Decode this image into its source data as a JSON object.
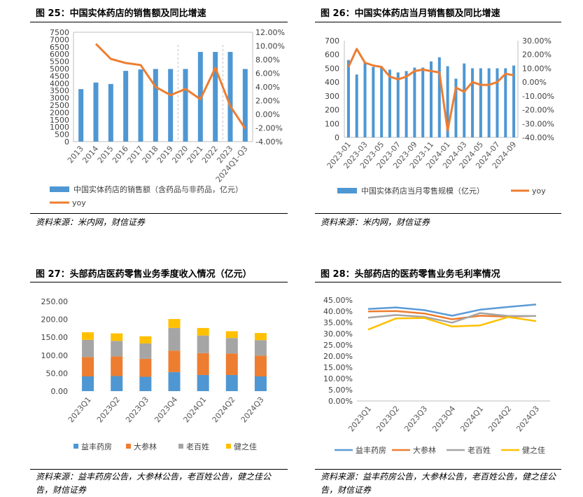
{
  "panels": [
    {
      "title": "图 25：中国实体药店的销售额及同比增速",
      "source": "资料来源：米内网，财信证券",
      "chart": {
        "type": "bar",
        "categories": [
          "2013",
          "2014",
          "2015",
          "2016",
          "2017",
          "2018",
          "2019",
          "2020",
          "2021",
          "2022",
          "2023",
          "2024Q1-Q3"
        ],
        "ylim": [
          0,
          7500
        ],
        "yticks": [
          "0",
          "500",
          "1000",
          "1500",
          "2000",
          "2500",
          "3000",
          "3500",
          "4000",
          "4500",
          "5000",
          "5500",
          "6000",
          "6500",
          "7000",
          "7500"
        ],
        "y2lim": [
          -4,
          12
        ],
        "y2ticks": [
          "-4.00%",
          "-2.00%",
          "0.00%",
          "2.00%",
          "4.00%",
          "6.00%",
          "8.00%",
          "10.00%",
          "12.00%"
        ],
        "series": [
          {
            "name": "中国实体药店的销售额（含药品与非药品，亿元）",
            "type": "bar",
            "color": "#4e97d3",
            "values": [
              3600,
              4050,
              3950,
              4850,
              4950,
              4980,
              4980,
              4980,
              6150,
              6150,
              6150,
              4980
            ]
          },
          {
            "name": "yoy",
            "type": "line",
            "axis": "right",
            "color": "#ed7d31",
            "values": [
              null,
              10.3,
              8.1,
              7.5,
              7.2,
              4.0,
              2.8,
              3.7,
              2.2,
              6.8,
              1.2,
              -2.1
            ]
          }
        ]
      }
    },
    {
      "title": "图 26：中国实体药店当月销售额及同比增速",
      "source": "资料来源：米内网，财信证券",
      "chart": {
        "type": "bar",
        "categories": [
          "2023-01",
          "2023-02",
          "2023-03",
          "2023-04",
          "2023-05",
          "2023-06",
          "2023-07",
          "2023-08",
          "2023-09",
          "2023-10",
          "2023-11",
          "2023-12",
          "2024-01",
          "2024-02",
          "2024-03",
          "2024-04",
          "2024-05",
          "2024-06",
          "2024-07",
          "2024-08",
          "2024-09"
        ],
        "xticks_shown": [
          "2023-01",
          "2023-03",
          "2023-05",
          "2023-07",
          "2023-09",
          "2023-11",
          "2024-01",
          "2024-03",
          "2024-05",
          "2024-07",
          "2024-09"
        ],
        "ylim": [
          0,
          700
        ],
        "yticks": [
          "0",
          "100",
          "200",
          "300",
          "400",
          "500",
          "600",
          "700"
        ],
        "y2lim": [
          -40,
          30
        ],
        "y2ticks": [
          "-40.00%",
          "-30.00%",
          "-20.00%",
          "-10.00%",
          "0.00%",
          "10.00%",
          "20.00%",
          "30.00%"
        ],
        "series": [
          {
            "name": "中国实体药店当月零售规模（亿元）",
            "type": "bar",
            "color": "#4e97d3",
            "values": [
              560,
              455,
              540,
              510,
              515,
              490,
              470,
              480,
              505,
              505,
              550,
              580,
              515,
              425,
              535,
              500,
              500,
              500,
              500,
              500,
              520
            ]
          },
          {
            "name": "yoy",
            "type": "line",
            "axis": "right",
            "color": "#ed7d31",
            "values": [
              11,
              24,
              14,
              12,
              11,
              4,
              2,
              4,
              8,
              9,
              8,
              7,
              -35,
              -4,
              -7,
              0,
              -2,
              -2,
              0,
              6,
              5
            ]
          }
        ]
      }
    },
    {
      "title": "图 27：头部药店医药零售业务季度收入情况（亿元）",
      "source": "资料来源：益丰药房公告，大参林公告，老百姓公告，健之佳公告，财信证券",
      "chart": {
        "type": "bar",
        "stacked": true,
        "categories": [
          "2023Q1",
          "2023Q2",
          "2023Q3",
          "2023Q4",
          "2024Q1",
          "2024Q2",
          "2024Q3"
        ],
        "ylim": [
          0,
          250
        ],
        "yticks": [
          "0.00",
          "50.00",
          "100.00",
          "150.00",
          "200.00",
          "250.00"
        ],
        "series": [
          {
            "name": "益丰药房",
            "color": "#4e97d3",
            "values": [
              41,
              42,
              40,
              53,
              45,
              45,
              41
            ]
          },
          {
            "name": "大参林",
            "color": "#ed7d31",
            "values": [
              54,
              55,
              50,
              60,
              61,
              60,
              58
            ]
          },
          {
            "name": "老百姓",
            "color": "#a5a5a5",
            "values": [
              48,
              43,
              43,
              63,
              49,
              43,
              43
            ]
          },
          {
            "name": "健之佳",
            "color": "#ffc000",
            "values": [
              21,
              21,
              20,
              25,
              21,
              19,
              20
            ]
          }
        ]
      }
    },
    {
      "title": "图 28：头部药店的医药零售业务毛利率情况",
      "source": "资料来源：益丰药房公告，大参林公告，老百姓公告，健之佳公告，财信证券",
      "chart": {
        "type": "line",
        "categories": [
          "2023Q1",
          "2023Q2",
          "2023Q3",
          "2023Q4",
          "2024Q1",
          "2024Q2",
          "2024Q3"
        ],
        "ylim": [
          0,
          45
        ],
        "yticks": [
          "0.00%",
          "5.00%",
          "10.00%",
          "15.00%",
          "20.00%",
          "25.00%",
          "30.00%",
          "35.00%",
          "40.00%",
          "45.00%"
        ],
        "series": [
          {
            "name": "益丰药房",
            "color": "#5b9bd5",
            "values": [
              41.0,
              41.7,
              40.5,
              38.0,
              40.7,
              41.9,
              43.0
            ]
          },
          {
            "name": "大参林",
            "color": "#ed7d31",
            "values": [
              39.9,
              40.1,
              39.0,
              36.4,
              38.0,
              37.6,
              37.9
            ]
          },
          {
            "name": "老百姓",
            "color": "#a5a5a5",
            "values": [
              37.1,
              38.3,
              37.5,
              34.9,
              39.2,
              37.9,
              37.9
            ]
          },
          {
            "name": "健之佳",
            "color": "#ffc000",
            "values": [
              31.8,
              36.8,
              37.0,
              33.2,
              33.7,
              37.4,
              35.6
            ]
          }
        ]
      }
    }
  ]
}
